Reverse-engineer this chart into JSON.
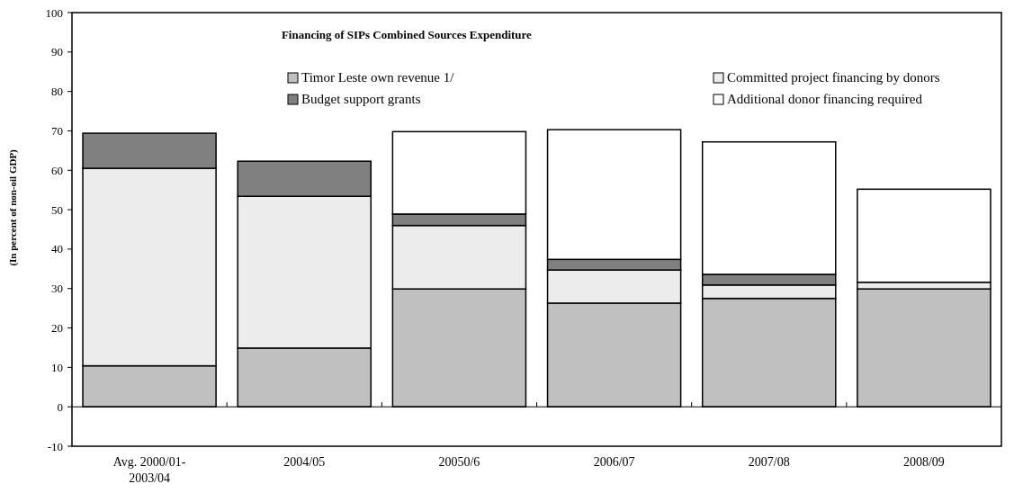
{
  "chart_data": {
    "type": "bar",
    "stacked": true,
    "title": "Financing of SIPs Combined Sources Expenditure",
    "ylabel": "(In percent of non-oil GDP)",
    "categories": [
      "Avg. 2000/01-\n2003/04",
      "2004/05",
      "20050/6",
      "2006/07",
      "2007/08",
      "2008/09"
    ],
    "series": [
      {
        "name": "Timor Leste own revenue 1/",
        "color": "#c0c0c0",
        "values": [
          10.4,
          14.9,
          29.9,
          26.3,
          27.5,
          29.9
        ]
      },
      {
        "name": "Committed project financing by donors",
        "color": "#ececec",
        "values": [
          50.1,
          38.5,
          16.1,
          8.4,
          3.4,
          1.7
        ]
      },
      {
        "name": "Budget support grants",
        "color": "#808080",
        "values": [
          8.9,
          8.9,
          2.9,
          2.7,
          2.7,
          0
        ]
      },
      {
        "name": "Additional donor financing required",
        "color": "#ffffff",
        "values": [
          0,
          0,
          20.9,
          32.9,
          33.6,
          23.6
        ]
      }
    ],
    "ylim": [
      -10,
      100
    ],
    "yticks": [
      -10,
      0,
      10,
      20,
      30,
      40,
      50,
      60,
      70,
      80,
      90,
      100
    ],
    "grid": false,
    "ref_lines": [
      {
        "axis": "y",
        "value": 0
      }
    ],
    "legend": "top"
  }
}
